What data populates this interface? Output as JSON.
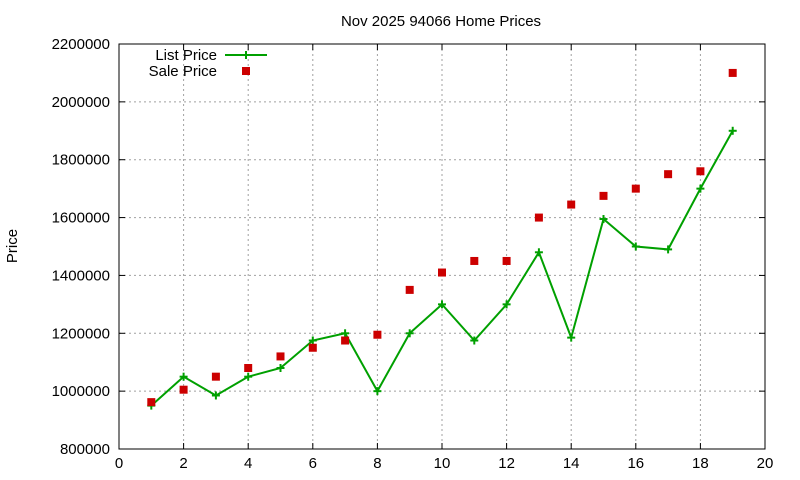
{
  "chart_data": {
    "type": "line",
    "title": "Nov 2025 94066 Home Prices",
    "xlabel": "",
    "ylabel": "Price",
    "xlim": [
      0,
      20
    ],
    "ylim": [
      800000,
      2200000
    ],
    "x_ticks": [
      0,
      2,
      4,
      6,
      8,
      10,
      12,
      14,
      16,
      18,
      20
    ],
    "y_ticks": [
      800000,
      1000000,
      1200000,
      1400000,
      1600000,
      1800000,
      2000000,
      2200000
    ],
    "grid": true,
    "legend_position": "top-left",
    "series": [
      {
        "name": "List Price",
        "style": "line-with-plus-markers",
        "color": "#00a000",
        "x": [
          1,
          2,
          3,
          4,
          5,
          6,
          7,
          8,
          9,
          10,
          11,
          12,
          13,
          14,
          15,
          16,
          17,
          18,
          19
        ],
        "values": [
          950000,
          1050000,
          985000,
          1050000,
          1080000,
          1175000,
          1200000,
          1000000,
          1200000,
          1300000,
          1175000,
          1300000,
          1480000,
          1185000,
          1595000,
          1500000,
          1490000,
          1700000,
          1900000
        ]
      },
      {
        "name": "Sale Price",
        "style": "square-markers",
        "color": "#cc0000",
        "x": [
          1,
          2,
          3,
          4,
          5,
          6,
          7,
          8,
          9,
          10,
          11,
          12,
          13,
          14,
          15,
          16,
          17,
          18,
          19
        ],
        "values": [
          962000,
          1005000,
          1050000,
          1080000,
          1120000,
          1150000,
          1175000,
          1195000,
          1350000,
          1410000,
          1450000,
          1450000,
          1600000,
          1645000,
          1675000,
          1700000,
          1750000,
          1760000,
          2100000
        ]
      }
    ]
  }
}
